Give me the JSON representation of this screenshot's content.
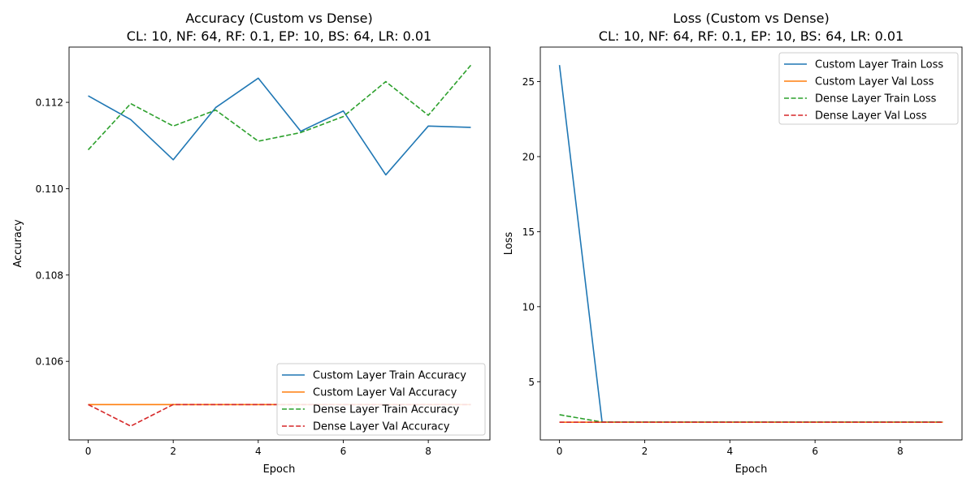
{
  "chart_data": [
    {
      "type": "line",
      "title": "Accuracy (Custom vs Dense)",
      "subtitle": "CL: 10, NF: 64, RF: 0.1, EP: 10, BS: 64, LR: 0.01",
      "xlabel": "Epoch",
      "ylabel": "Accuracy",
      "xlim": [
        -0.45,
        9.45
      ],
      "ylim": [
        0.10418,
        0.11328
      ],
      "xticks": [
        0,
        2,
        4,
        6,
        8
      ],
      "yticks": [
        0.106,
        0.108,
        0.11,
        0.112
      ],
      "ytick_labels": [
        "0.106",
        "0.108",
        "0.110",
        "0.112"
      ],
      "grid": false,
      "legend_position": "lower-right",
      "x": [
        0,
        1,
        2,
        3,
        4,
        5,
        6,
        7,
        8,
        9
      ],
      "series": [
        {
          "name": "Custom Layer Train Accuracy",
          "color": "#1f77b4",
          "dash": "solid",
          "values": [
            0.11215,
            0.1116,
            0.11067,
            0.11188,
            0.11256,
            0.11133,
            0.1118,
            0.11032,
            0.11145,
            0.11142
          ]
        },
        {
          "name": "Custom Layer Val Accuracy",
          "color": "#ff7f0e",
          "dash": "solid",
          "values": [
            0.105,
            0.105,
            0.105,
            0.105,
            0.105,
            0.105,
            0.105,
            0.105,
            0.105,
            0.105
          ]
        },
        {
          "name": "Dense Layer Train Accuracy",
          "color": "#2ca02c",
          "dash": "dashed",
          "values": [
            0.1109,
            0.11197,
            0.11145,
            0.11182,
            0.1111,
            0.1113,
            0.11167,
            0.11248,
            0.1117,
            0.11286
          ]
        },
        {
          "name": "Dense Layer Val Accuracy",
          "color": "#d62728",
          "dash": "dashed",
          "values": [
            0.105,
            0.1045,
            0.105,
            0.105,
            0.105,
            0.105,
            0.105,
            0.105,
            0.105,
            0.105
          ]
        }
      ]
    },
    {
      "type": "line",
      "title": "Loss (Custom vs Dense)",
      "subtitle": "CL: 10, NF: 64, RF: 0.1, EP: 10, BS: 64, LR: 0.01",
      "xlabel": "Epoch",
      "ylabel": "Loss",
      "xlim": [
        -0.45,
        9.45
      ],
      "ylim": [
        1.12,
        27.3
      ],
      "xticks": [
        0,
        2,
        4,
        6,
        8
      ],
      "yticks": [
        5,
        10,
        15,
        20,
        25
      ],
      "ytick_labels": [
        "5",
        "10",
        "15",
        "20",
        "25"
      ],
      "grid": false,
      "legend_position": "top-right",
      "x": [
        0,
        1,
        2,
        3,
        4,
        5,
        6,
        7,
        8,
        9
      ],
      "series": [
        {
          "name": "Custom Layer Train Loss",
          "color": "#1f77b4",
          "dash": "solid",
          "values": [
            26.1,
            2.31,
            2.31,
            2.31,
            2.31,
            2.31,
            2.31,
            2.31,
            2.31,
            2.31
          ]
        },
        {
          "name": "Custom Layer Val Loss",
          "color": "#ff7f0e",
          "dash": "solid",
          "values": [
            2.3,
            2.3,
            2.3,
            2.3,
            2.3,
            2.3,
            2.3,
            2.3,
            2.3,
            2.3
          ]
        },
        {
          "name": "Dense Layer Train Loss",
          "color": "#2ca02c",
          "dash": "dashed",
          "values": [
            2.8,
            2.31,
            2.31,
            2.31,
            2.31,
            2.31,
            2.31,
            2.31,
            2.31,
            2.31
          ]
        },
        {
          "name": "Dense Layer Val Loss",
          "color": "#d62728",
          "dash": "dashed",
          "values": [
            2.3,
            2.3,
            2.3,
            2.3,
            2.3,
            2.3,
            2.3,
            2.3,
            2.3,
            2.3
          ]
        }
      ]
    }
  ]
}
